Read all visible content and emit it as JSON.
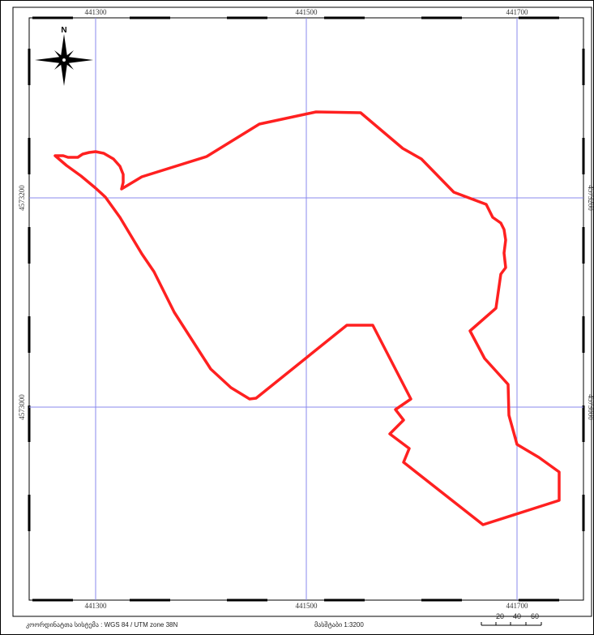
{
  "map": {
    "north_label": "N",
    "easting_labels": [
      "441300",
      "441500",
      "441700"
    ],
    "northing_labels": [
      "4573200",
      "4573000"
    ],
    "crs_label": "კოორდინატთა სისტემა : WGS 84 / UTM zone 38N",
    "scale_label": "მასშტაბი 1:3200",
    "scale_ticks": [
      "20",
      "40",
      "60"
    ],
    "colors": {
      "boundary": "#ff2020",
      "grid": "#8888ee",
      "frame": "#000000"
    }
  }
}
